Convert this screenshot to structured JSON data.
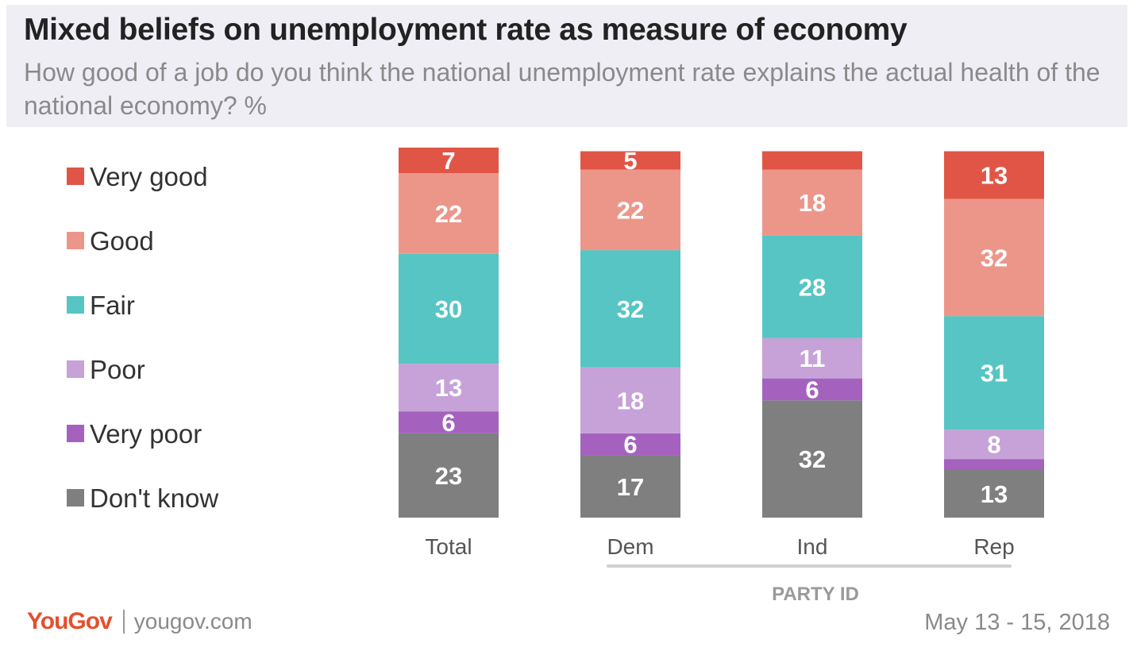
{
  "header": {
    "title": "Mixed beliefs on unemployment rate as measure of economy",
    "subtitle": "How good of a job do you think the national unemployment rate explains the actual health of the national economy? %"
  },
  "chart_data": {
    "type": "bar",
    "stacked": true,
    "categories": [
      "Total",
      "Dem",
      "Ind",
      "Rep"
    ],
    "group_label": "PARTY ID",
    "group_categories": [
      "Dem",
      "Ind",
      "Rep"
    ],
    "legend_position": "left",
    "grid": false,
    "series": [
      {
        "name": "Very good",
        "color": "#e15546",
        "values": [
          7,
          5,
          5,
          13
        ],
        "labels": [
          "7",
          "5",
          "",
          "13"
        ]
      },
      {
        "name": "Good",
        "color": "#ec968a",
        "values": [
          22,
          22,
          18,
          32
        ],
        "labels": [
          "22",
          "22",
          "18",
          "32"
        ]
      },
      {
        "name": "Fair",
        "color": "#56c5c3",
        "values": [
          30,
          32,
          28,
          31
        ],
        "labels": [
          "30",
          "32",
          "28",
          "31"
        ]
      },
      {
        "name": "Poor",
        "color": "#c6a2d8",
        "values": [
          13,
          18,
          11,
          8
        ],
        "labels": [
          "13",
          "18",
          "11",
          "8"
        ]
      },
      {
        "name": "Very poor",
        "color": "#a462be",
        "values": [
          6,
          6,
          6,
          3
        ],
        "labels": [
          "6",
          "6",
          "6",
          ""
        ]
      },
      {
        "name": "Don't know",
        "color": "#7f7f7f",
        "values": [
          23,
          17,
          32,
          13
        ],
        "labels": [
          "23",
          "17",
          "32",
          "13"
        ]
      }
    ]
  },
  "footer": {
    "brand": "YouGov",
    "site": "yougov.com",
    "date": "May 13 - 15, 2018"
  }
}
